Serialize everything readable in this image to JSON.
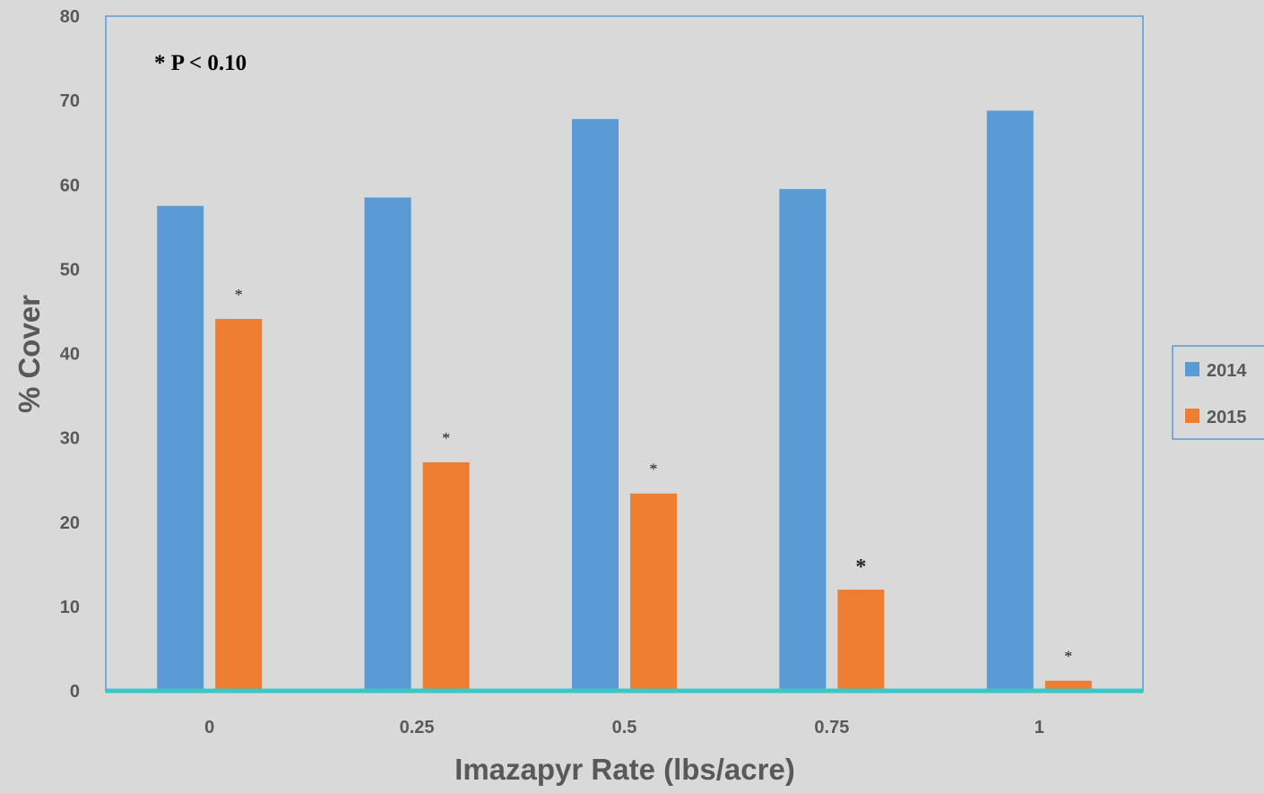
{
  "chart_data": {
    "type": "bar",
    "title": "",
    "xlabel": "Imazapyr Rate (lbs/acre)",
    "ylabel": "% Cover",
    "ylim": [
      0,
      80
    ],
    "y_ticks": [
      0,
      10,
      20,
      30,
      40,
      50,
      60,
      70,
      80
    ],
    "categories": [
      "0",
      "0.25",
      "0.5",
      "0.75",
      "1"
    ],
    "series": [
      {
        "name": "2014",
        "color": "#5b9bd5",
        "values": [
          57.5,
          58.5,
          67.8,
          59.5,
          68.8
        ]
      },
      {
        "name": "2015",
        "color": "#ed7d31",
        "values": [
          44.1,
          27.1,
          23.4,
          12.0,
          1.2
        ]
      }
    ],
    "significance_markers": [
      "*",
      "*",
      "*",
      "*",
      "*"
    ],
    "annotation": "* P < 0.10",
    "legend_position": "right",
    "grid": false,
    "axis_color": "#3cc7c7",
    "border_color": "#5b9bd5"
  }
}
